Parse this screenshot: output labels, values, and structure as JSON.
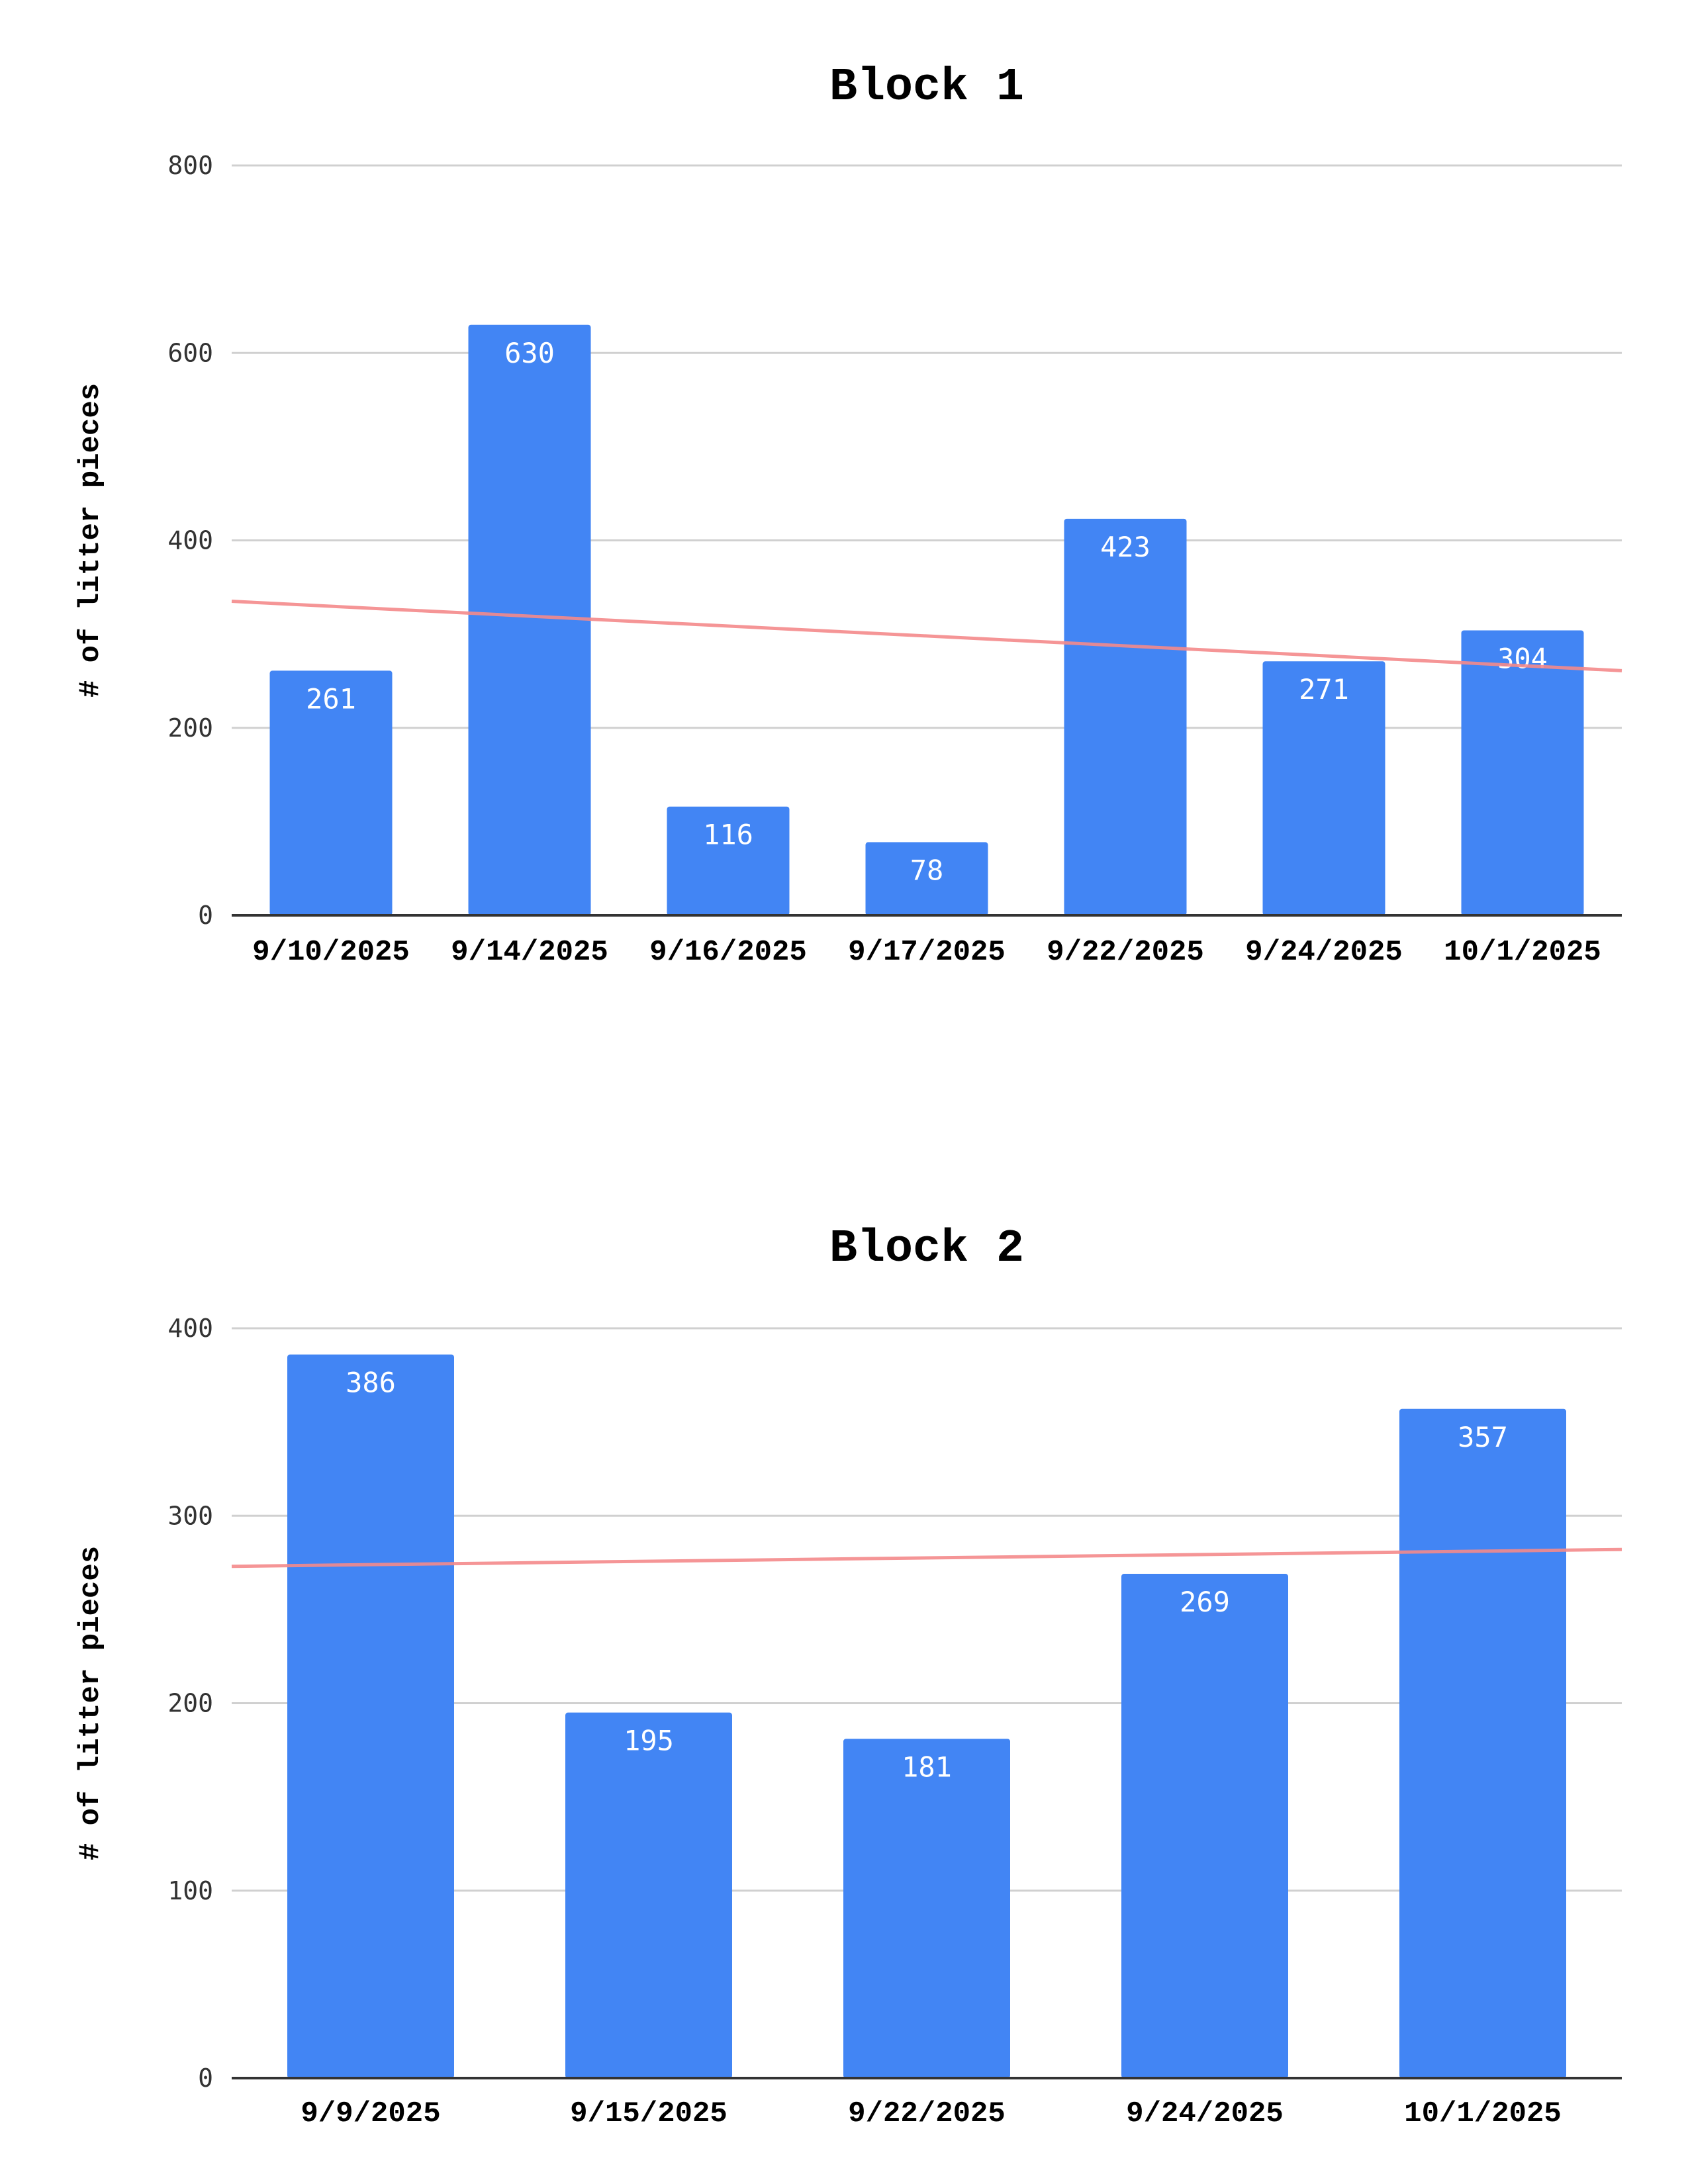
{
  "chart_data": [
    {
      "type": "bar",
      "title": "Block 1",
      "xlabel": "",
      "ylabel": "# of litter pieces",
      "categories": [
        "9/10/2025",
        "9/14/2025",
        "9/16/2025",
        "9/17/2025",
        "9/22/2025",
        "9/24/2025",
        "10/1/2025"
      ],
      "values": [
        261,
        630,
        116,
        78,
        423,
        271,
        304
      ],
      "ylim": [
        0,
        800
      ],
      "yticks": [
        "0",
        "200",
        "400",
        "600",
        "800"
      ],
      "grid": true,
      "data_labels": true,
      "trendline": {
        "type": "linear",
        "start": 335,
        "end": 261
      },
      "colors": {
        "bar": "#4285f4",
        "trendline": "#f4898b",
        "grid": "#d0d0d0",
        "axis": "#333333"
      }
    },
    {
      "type": "bar",
      "title": "Block 2",
      "xlabel": "",
      "ylabel": "# of litter pieces",
      "categories": [
        "9/9/2025",
        "9/15/2025",
        "9/22/2025",
        "9/24/2025",
        "10/1/2025"
      ],
      "values": [
        386,
        195,
        181,
        269,
        357
      ],
      "ylim": [
        0,
        400
      ],
      "yticks": [
        "0",
        "100",
        "200",
        "300",
        "400"
      ],
      "grid": true,
      "data_labels": true,
      "trendline": {
        "type": "linear",
        "start": 273,
        "end": 282
      },
      "colors": {
        "bar": "#4285f4",
        "trendline": "#f4898b",
        "grid": "#d0d0d0",
        "axis": "#333333"
      }
    }
  ]
}
